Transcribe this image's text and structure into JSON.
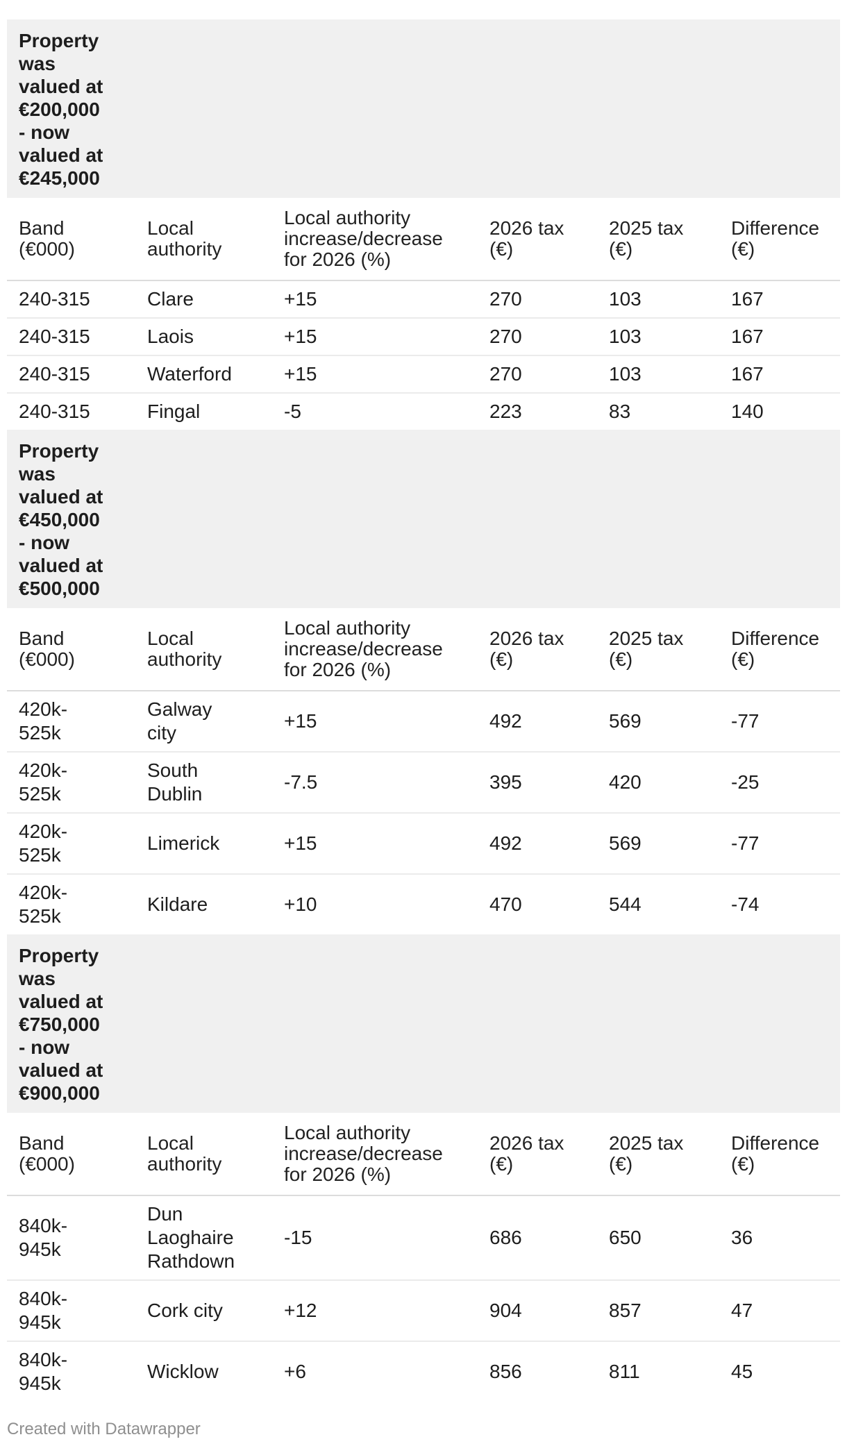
{
  "page": {
    "footer_credit": "Created with Datawrapper",
    "colors": {
      "group_header_bg": "#f0f0f0",
      "body_text": "#1d1d1d",
      "header_text": "#222222",
      "header_divider": "#dcdcdc",
      "row_divider": "#ebebeb",
      "footer_text": "#8f8f8f",
      "page_bg": "#ffffff"
    }
  },
  "cell_names": [
    "cell-band",
    "cell-local-authority",
    "cell-rate-change",
    "cell-2026-tax",
    "cell-2025-tax",
    "cell-difference"
  ],
  "sections": [
    {
      "title": "Property\nwas\nvalued at\n€200,000\n- now\nvalued at\n€245,000",
      "headers": [
        "Band\n(€000)",
        "Local\nauthority",
        "Local authority\nincrease/decrease\nfor 2026 (%)",
        "2026 tax\n(€)",
        "2025 tax\n(€)",
        "Difference\n(€)"
      ],
      "rows": [
        [
          "240-315",
          "Clare",
          "+15",
          "270",
          "103",
          "167"
        ],
        [
          "240-315",
          "Laois",
          "+15",
          "270",
          "103",
          "167"
        ],
        [
          "240-315",
          "Waterford",
          "+15",
          "270",
          "103",
          "167"
        ],
        [
          "240-315",
          "Fingal",
          "-5",
          "223",
          "83",
          "140"
        ]
      ]
    },
    {
      "title": "Property\nwas\nvalued at\n€450,000\n- now\nvalued at\n€500,000",
      "headers": [
        "Band\n(€000)",
        "Local\nauthority",
        "Local authority\nincrease/decrease\nfor 2026 (%)",
        "2026 tax\n(€)",
        "2025 tax\n(€)",
        "Difference\n(€)"
      ],
      "rows": [
        [
          "420k-\n525k",
          "Galway\ncity",
          "+15",
          "492",
          "569",
          "-77"
        ],
        [
          "420k-\n525k",
          "South\nDublin",
          "-7.5",
          "395",
          "420",
          "-25"
        ],
        [
          "420k-\n525k",
          "Limerick",
          "+15",
          "492",
          "569",
          "-77"
        ],
        [
          "420k-\n525k",
          "Kildare",
          "+10",
          "470",
          "544",
          "-74"
        ]
      ]
    },
    {
      "title": "Property\nwas\nvalued at\n€750,000\n- now\nvalued at\n€900,000",
      "headers": [
        "Band\n(€000)",
        "Local\nauthority",
        "Local authority\nincrease/decrease\nfor 2026 (%)",
        "2026 tax\n(€)",
        "2025 tax\n(€)",
        "Difference\n(€)"
      ],
      "rows": [
        [
          "840k-\n945k",
          "Dun\nLaoghaire\nRathdown",
          "-15",
          "686",
          "650",
          "36"
        ],
        [
          "840k-\n945k",
          "Cork city",
          "+12",
          "904",
          "857",
          "47"
        ],
        [
          "840k-\n945k",
          "Wicklow",
          "+6",
          "856",
          "811",
          "45"
        ]
      ]
    }
  ],
  "chart_data": [
    {
      "type": "table",
      "title": "Property was valued at €200,000 - now valued at €245,000",
      "columns": [
        "Band (€000)",
        "Local authority",
        "Local authority increase/decrease for 2026 (%)",
        "2026 tax (€)",
        "2025 tax (€)",
        "Difference (€)"
      ],
      "rows": [
        [
          "240-315",
          "Clare",
          15,
          270,
          103,
          167
        ],
        [
          "240-315",
          "Laois",
          15,
          270,
          103,
          167
        ],
        [
          "240-315",
          "Waterford",
          15,
          270,
          103,
          167
        ],
        [
          "240-315",
          "Fingal",
          -5,
          223,
          83,
          140
        ]
      ]
    },
    {
      "type": "table",
      "title": "Property was valued at €450,000 - now valued at €500,000",
      "columns": [
        "Band (€000)",
        "Local authority",
        "Local authority increase/decrease for 2026 (%)",
        "2026 tax (€)",
        "2025 tax (€)",
        "Difference (€)"
      ],
      "rows": [
        [
          "420k-525k",
          "Galway city",
          15,
          492,
          569,
          -77
        ],
        [
          "420k-525k",
          "South Dublin",
          -7.5,
          395,
          420,
          -25
        ],
        [
          "420k-525k",
          "Limerick",
          15,
          492,
          569,
          -77
        ],
        [
          "420k-525k",
          "Kildare",
          10,
          470,
          544,
          -74
        ]
      ]
    },
    {
      "type": "table",
      "title": "Property was valued at €750,000 - now valued at €900,000",
      "columns": [
        "Band (€000)",
        "Local authority",
        "Local authority increase/decrease for 2026 (%)",
        "2026 tax (€)",
        "2025 tax (€)",
        "Difference (€)"
      ],
      "rows": [
        [
          "840k-945k",
          "Dun Laoghaire Rathdown",
          -15,
          686,
          650,
          36
        ],
        [
          "840k-945k",
          "Cork city",
          12,
          904,
          857,
          47
        ],
        [
          "840k-945k",
          "Wicklow",
          6,
          856,
          811,
          45
        ]
      ]
    }
  ]
}
